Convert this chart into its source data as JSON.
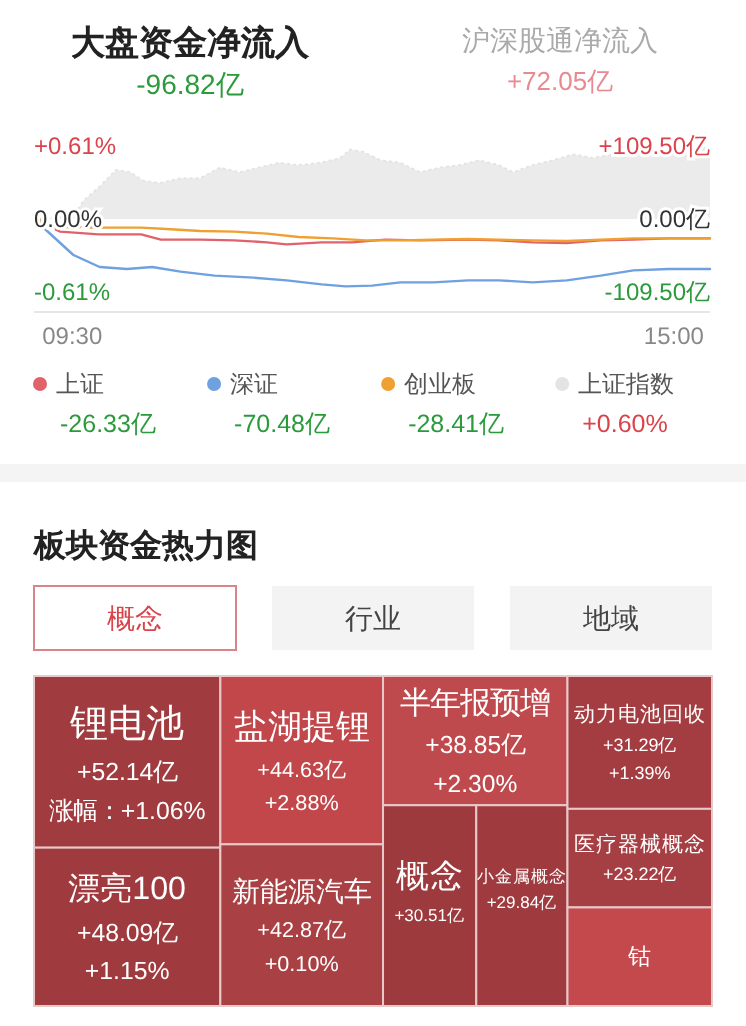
{
  "chart_data": [
    {
      "type": "line",
      "title": "大盘资金净流入",
      "subtitle": "-96.82亿",
      "xlim": [
        9.15,
        15.33
      ],
      "xticks": [
        {
          "value": 9.5,
          "label": "09:30"
        },
        {
          "value": 15,
          "label": "15:00"
        }
      ],
      "ylim": [
        -0.61,
        0.61
      ],
      "yticks": [
        {
          "value": -0.61,
          "label": "-0.61%"
        },
        {
          "value": 0,
          "label": "0.00%"
        },
        {
          "value": 0.61,
          "label": "+0.61%"
        }
      ],
      "y2lim": [
        -109.5,
        109.5
      ],
      "y2ticks": [
        {
          "value": -109.5,
          "label": "-109.50亿"
        },
        {
          "value": 0,
          "label": "0.00亿"
        },
        {
          "value": 109.5,
          "label": "+109.50亿"
        }
      ],
      "legend": "bottom",
      "marker": "none",
      "line_style": "solid",
      "series": [
        {
          "name": "上证",
          "color": "#e0636b",
          "axis": "y2",
          "x": [
            9.15,
            9.39,
            9.74,
            10.13,
            10.31,
            10.67,
            10.98,
            11.28,
            11.46,
            11.78,
            12.06,
            12.36,
            12.68,
            13.12,
            13.4,
            13.71,
            14.02,
            14.33,
            14.63,
            14.95,
            15.33
          ],
          "values": [
            0,
            -19,
            -23,
            -23,
            -31,
            -31,
            -32,
            -35,
            -38,
            -35,
            -35,
            -31,
            -32,
            -31,
            -32,
            -35,
            -36,
            -32,
            -31,
            -29,
            -29
          ]
        },
        {
          "name": "深证",
          "color": "#6fa0e0",
          "axis": "y2",
          "x": [
            9.15,
            9.33,
            9.51,
            9.75,
            10.0,
            10.23,
            10.49,
            10.8,
            11.16,
            11.46,
            11.78,
            12.0,
            12.24,
            12.5,
            12.8,
            13.12,
            13.4,
            13.71,
            14.02,
            14.33,
            14.63,
            14.95,
            15.33
          ],
          "values": [
            0,
            -27,
            -54,
            -72,
            -75,
            -72,
            -79,
            -85,
            -88,
            -92,
            -98,
            -101,
            -100,
            -95,
            -95,
            -92,
            -92,
            -95,
            -92,
            -85,
            -77,
            -75,
            -75
          ]
        },
        {
          "name": "创业板",
          "color": "#f0a030",
          "axis": "y2",
          "x": [
            9.15,
            9.39,
            9.74,
            10.13,
            10.36,
            10.67,
            10.98,
            11.28,
            11.57,
            11.88,
            12.18,
            12.5,
            12.8,
            13.12,
            13.4,
            13.71,
            14.02,
            14.33,
            14.63,
            14.95,
            15.33
          ],
          "values": [
            2,
            -12,
            -13,
            -13,
            -15,
            -18,
            -19,
            -22,
            -27,
            -29,
            -32,
            -32,
            -31,
            -30,
            -31,
            -32,
            -33,
            -31,
            -29,
            -29,
            -29
          ]
        },
        {
          "name": "上证指数",
          "type": "area",
          "color": "#e4e4e4",
          "axis": "y",
          "x": [
            9.15,
            9.51,
            9.6,
            9.76,
            9.9,
            10.03,
            10.15,
            10.3,
            10.49,
            10.67,
            10.85,
            11.03,
            11.21,
            11.39,
            11.57,
            11.77,
            11.95,
            12.04,
            12.16,
            12.32,
            12.5,
            12.68,
            12.86,
            13.04,
            13.22,
            13.4,
            13.53,
            13.71,
            13.89,
            14.08,
            14.26,
            14.44,
            14.69,
            14.94,
            15.18,
            15.33
          ],
          "values": [
            0,
            0.02,
            0.15,
            0.28,
            0.41,
            0.39,
            0.32,
            0.3,
            0.34,
            0.34,
            0.43,
            0.39,
            0.43,
            0.47,
            0.45,
            0.47,
            0.51,
            0.58,
            0.56,
            0.49,
            0.47,
            0.39,
            0.43,
            0.45,
            0.49,
            0.45,
            0.39,
            0.45,
            0.49,
            0.54,
            0.51,
            0.54,
            0.56,
            0.58,
            0.6,
            0.59
          ]
        }
      ],
      "annotations": [
        "沪深股通净流入",
        "+72.05亿",
        "-26.33亿",
        "-70.48亿",
        "-28.41亿",
        "+0.60%"
      ]
    },
    {
      "type": "other",
      "title": "板块资金热力图",
      "categories": [
        "锂电池",
        "漂亮100",
        "盐湖提锂",
        "新能源汽车",
        "半年报预增",
        "概念",
        "小金属概念",
        "动力电池回收",
        "医疗器械概念",
        "钴"
      ],
      "series": [
        {
          "colors": [
            "#a03c40",
            "#9f3b3f",
            "#c1474b",
            "#a84044",
            "#bf4a4e",
            "#9c3a3e",
            "#9f3b3f",
            "#a33d41",
            "#a63f43",
            "#c4494d"
          ],
          "values": [
            52.14,
            48.09,
            44.63,
            42.87,
            38.85,
            30.51,
            29.84,
            31.29,
            23.22,
            null
          ],
          "value_labels": [
            "+52.14亿",
            "+48.09亿",
            "+44.63亿",
            "+42.87亿",
            "+38.85亿",
            "+30.51亿",
            "+29.84亿",
            "+31.29亿",
            "+23.22亿",
            null
          ]
        },
        {
          "values": [
            1.06,
            1.15,
            2.88,
            0.1,
            2.3,
            null,
            null,
            1.39,
            null,
            null
          ],
          "value_labels": [
            "涨幅：+1.06%",
            "+1.15%",
            "+2.88%",
            "+0.10%",
            "+2.30%",
            null,
            null,
            "+1.39%",
            null,
            null
          ]
        }
      ],
      "annotations": [
        "概念",
        "行业",
        "地域"
      ]
    }
  ]
}
